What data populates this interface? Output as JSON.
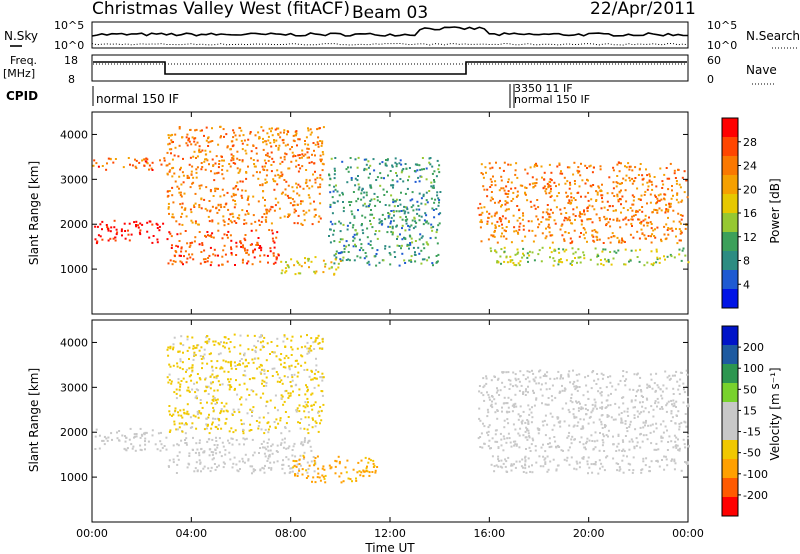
{
  "header": {
    "station": "Christmas Valley West (fitACF)",
    "beam": "Beam 03",
    "date": "22/Apr/2011"
  },
  "strips": {
    "nsky_label": "N.Sky",
    "nsky_ticks": [
      "10^5",
      "10^0"
    ],
    "nsearch_label": "N.Search",
    "nsearch_ticks": [
      "10^5",
      "10^0"
    ],
    "freq_label": "Freq.",
    "freq_unit": "[MHz]",
    "freq_ticks": [
      "18",
      "8"
    ],
    "nave_label": "Nave",
    "nave_ticks": [
      "60",
      "0"
    ],
    "cpid_label": "CPID",
    "cpid_main": "normal 150 IF",
    "cpid_overlap_1": "3350 11 IF",
    "cpid_overlap_2": "normal 150 IF"
  },
  "chart_data": [
    {
      "type": "heatmap",
      "panel": "power",
      "ylabel": "Slant Range [km]",
      "ylim": [
        0,
        4500
      ],
      "yticks": [
        "1000",
        "2000",
        "3000",
        "4000"
      ],
      "colorbar_label": "Power [dB]",
      "colorbar_ticks": [
        "28",
        "24",
        "20",
        "16",
        "12",
        "8",
        "4"
      ],
      "colorscale": [
        "#0014e6",
        "#1e5ad2",
        "#2d8c82",
        "#3ca05a",
        "#96c832",
        "#e6c800",
        "#f5a000",
        "#fa7800",
        "#ff4600",
        "#ff0000"
      ],
      "colorbar_range": [
        0,
        30
      ],
      "bands": [
        {
          "t": [
            0,
            3
          ],
          "r": [
            3200,
            3500
          ],
          "v": 24
        },
        {
          "t": [
            0,
            3
          ],
          "r": [
            1600,
            2100
          ],
          "v": 29
        },
        {
          "t": [
            3,
            9.3
          ],
          "r": [
            2000,
            4200
          ],
          "v": 22
        },
        {
          "t": [
            3,
            7.5
          ],
          "r": [
            1100,
            1900
          ],
          "v": 25
        },
        {
          "t": [
            7.5,
            10
          ],
          "r": [
            900,
            1300
          ],
          "v": 17
        },
        {
          "t": [
            9.5,
            14
          ],
          "r": [
            1100,
            3500
          ],
          "v": 9
        },
        {
          "t": [
            15.5,
            24
          ],
          "r": [
            1600,
            3400
          ],
          "v": 22
        },
        {
          "t": [
            16,
            24
          ],
          "r": [
            1100,
            1500
          ],
          "v": 14
        }
      ]
    },
    {
      "type": "heatmap",
      "panel": "velocity",
      "xlabel": "Time UT",
      "xticks": [
        "00:00",
        "04:00",
        "08:00",
        "12:00",
        "16:00",
        "20:00",
        "00:00"
      ],
      "xlim": [
        0,
        24
      ],
      "ylabel": "Slant Range [km]",
      "ylim": [
        0,
        4500
      ],
      "yticks": [
        "1000",
        "2000",
        "3000",
        "4000"
      ],
      "colorbar_label": "Velocity [m s⁻¹]",
      "colorbar_ticks": [
        "200",
        "100",
        "50",
        "15",
        "-15",
        "-50",
        "-100",
        "-200"
      ],
      "colorscale": [
        "#ff0000",
        "#ff5a00",
        "#ffa000",
        "#f0c800",
        "#c8c8c8",
        "#c8c8c8",
        "#78d22d",
        "#2d9650",
        "#1e5aa0",
        "#0014c8"
      ],
      "colorbar_range": [
        -250,
        250
      ],
      "bands": [
        {
          "t": [
            0,
            3
          ],
          "r": [
            1600,
            2100
          ],
          "v": 0
        },
        {
          "t": [
            3,
            9.3
          ],
          "r": [
            2000,
            4200
          ],
          "v": -60
        },
        {
          "t": [
            3,
            9
          ],
          "r": [
            1100,
            1900
          ],
          "v": 0
        },
        {
          "t": [
            8,
            11.5
          ],
          "r": [
            900,
            1500
          ],
          "v": -110
        },
        {
          "t": [
            15.5,
            24
          ],
          "r": [
            1600,
            3400
          ],
          "v": 0
        },
        {
          "t": [
            16,
            24
          ],
          "r": [
            1100,
            1500
          ],
          "v": 0
        }
      ]
    }
  ]
}
